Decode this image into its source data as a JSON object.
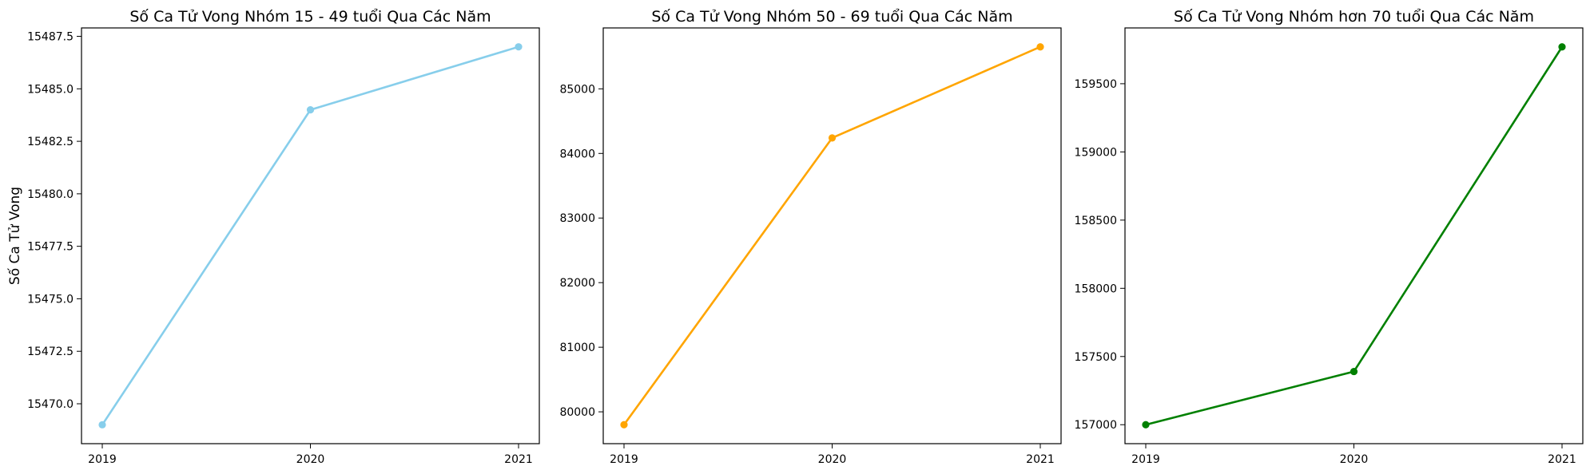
{
  "chart_data": [
    {
      "type": "line",
      "title": "Số Ca Tử Vong Nhóm 15 - 49 tuổi Qua Các Năm",
      "xlabel": "",
      "ylabel": "Số Ca Tử Vong",
      "x": [
        "2019",
        "2020",
        "2021"
      ],
      "series": [
        {
          "values": [
            15469,
            15484,
            15487
          ],
          "color": "#87ceeb"
        }
      ],
      "ylim": [
        15468.1,
        15487.9
      ],
      "yticks": [
        15470.0,
        15472.5,
        15475.0,
        15477.5,
        15480.0,
        15482.5,
        15485.0,
        15487.5
      ],
      "ytick_labels": [
        "15470.0",
        "15472.5",
        "15475.0",
        "15477.5",
        "15480.0",
        "15482.5",
        "15485.0",
        "15487.5"
      ],
      "grid": false,
      "marker": "circle"
    },
    {
      "type": "line",
      "title": "Số Ca Tử Vong Nhóm 50 - 69 tuổi Qua Các Năm",
      "xlabel": "",
      "ylabel": "",
      "x": [
        "2019",
        "2020",
        "2021"
      ],
      "series": [
        {
          "values": [
            79800,
            84240,
            85650
          ],
          "color": "#ffa500"
        }
      ],
      "ylim": [
        79507,
        85943
      ],
      "yticks": [
        80000,
        81000,
        82000,
        83000,
        84000,
        85000
      ],
      "ytick_labels": [
        "80000",
        "81000",
        "82000",
        "83000",
        "84000",
        "85000"
      ],
      "grid": false,
      "marker": "circle"
    },
    {
      "type": "line",
      "title": "Số Ca Tử Vong Nhóm hơn 70 tuổi Qua Các Năm",
      "xlabel": "",
      "ylabel": "",
      "x": [
        "2019",
        "2020",
        "2021"
      ],
      "series": [
        {
          "values": [
            157000,
            157390,
            159770
          ],
          "color": "#008000"
        }
      ],
      "ylim": [
        156861,
        159909
      ],
      "yticks": [
        157000,
        157500,
        158000,
        158500,
        159000,
        159500
      ],
      "ytick_labels": [
        "157000",
        "157500",
        "158000",
        "158500",
        "159000",
        "159500"
      ],
      "grid": false,
      "marker": "circle"
    }
  ]
}
